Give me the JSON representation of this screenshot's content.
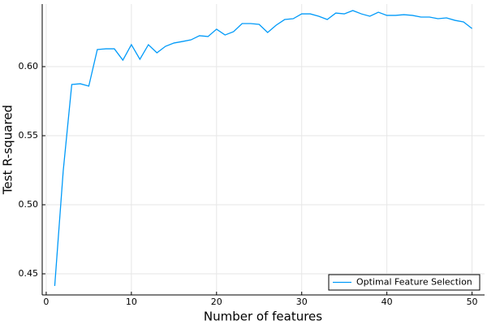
{
  "chart_data": {
    "type": "line",
    "xlabel": "Number of features",
    "ylabel": "Test R-squared",
    "x": [
      1,
      2,
      3,
      4,
      5,
      6,
      7,
      8,
      9,
      10,
      11,
      12,
      13,
      14,
      15,
      16,
      17,
      18,
      19,
      20,
      21,
      22,
      23,
      24,
      25,
      26,
      27,
      28,
      29,
      30,
      31,
      32,
      33,
      34,
      35,
      36,
      37,
      38,
      39,
      40,
      41,
      42,
      43,
      44,
      45,
      46,
      47,
      48,
      49,
      50
    ],
    "series": [
      {
        "name": "Optimal Feature Selection",
        "color": "#009af9",
        "values": [
          0.4412,
          0.5247,
          0.5871,
          0.5876,
          0.5859,
          0.6124,
          0.6129,
          0.6129,
          0.6047,
          0.6159,
          0.6053,
          0.6159,
          0.61,
          0.6147,
          0.6171,
          0.6182,
          0.6194,
          0.6224,
          0.6218,
          0.6271,
          0.6229,
          0.6253,
          0.6312,
          0.6312,
          0.6306,
          0.6247,
          0.63,
          0.6341,
          0.6347,
          0.6382,
          0.6382,
          0.6365,
          0.6341,
          0.6388,
          0.6382,
          0.6406,
          0.6382,
          0.6365,
          0.6394,
          0.6371,
          0.6371,
          0.6376,
          0.6371,
          0.6359,
          0.6359,
          0.6347,
          0.6353,
          0.6335,
          0.6324,
          0.6276
        ]
      }
    ],
    "xlim": [
      -0.47,
      51.47
    ],
    "xticks": [
      0,
      10,
      20,
      30,
      40,
      50
    ],
    "ylim": [
      0.4347,
      0.6453
    ],
    "yticks": [
      0.45,
      {
        "value": 0.5,
        "label": "0.50"
      },
      0.55,
      {
        "value": 0.6,
        "label": "0.60"
      }
    ],
    "grid": true,
    "legend": "bottom-right"
  }
}
